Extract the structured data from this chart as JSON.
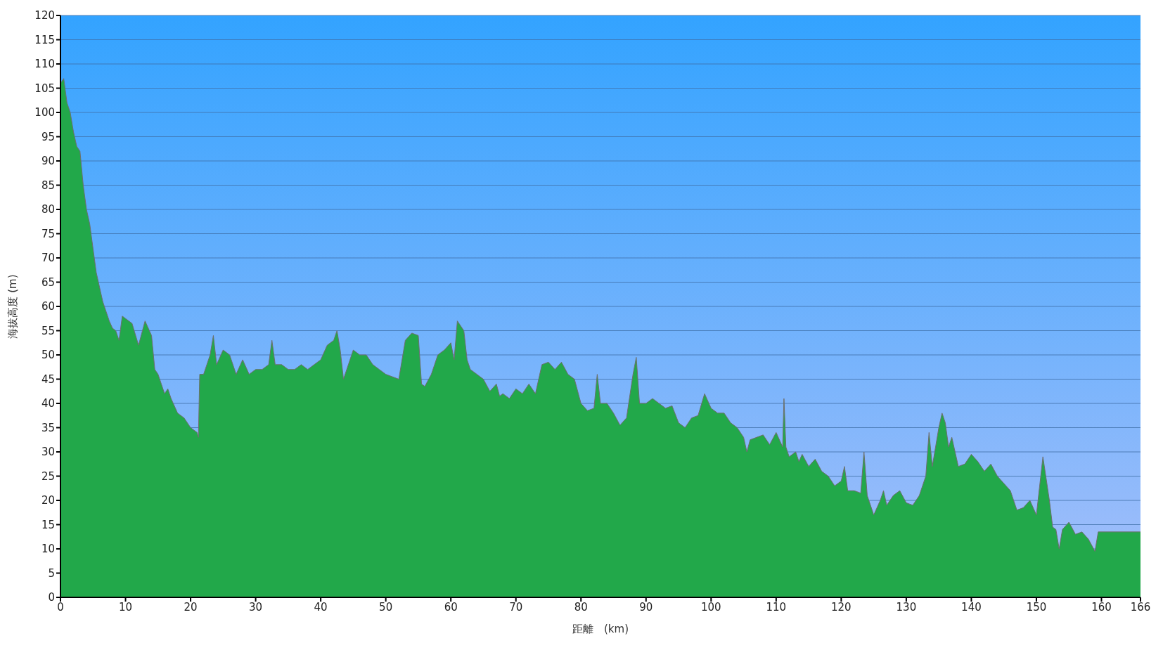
{
  "chart_data": {
    "type": "area",
    "xlabel": "距離　(km)",
    "ylabel": "海拔高度 (m)",
    "xlim": [
      0,
      166
    ],
    "ylim": [
      0,
      120
    ],
    "xticks": [
      0,
      10,
      20,
      30,
      40,
      50,
      60,
      70,
      80,
      90,
      100,
      110,
      120,
      130,
      140,
      150,
      160,
      166
    ],
    "yticks": [
      0,
      5,
      10,
      15,
      20,
      25,
      30,
      35,
      40,
      45,
      50,
      55,
      60,
      65,
      70,
      75,
      80,
      85,
      90,
      95,
      100,
      105,
      110,
      115,
      120
    ],
    "grid": "y",
    "series": [
      {
        "color": "#22a84a",
        "x": [
          0,
          0.5,
          1,
          1.5,
          2,
          2.5,
          3,
          3.5,
          4,
          4.5,
          5,
          5.5,
          6,
          6.5,
          7,
          7.5,
          8,
          8.5,
          9,
          9.5,
          10,
          11,
          12,
          13,
          14,
          14.5,
          15,
          15.5,
          16,
          16.5,
          17,
          18,
          19,
          20,
          21,
          21.2,
          21.4,
          22,
          23,
          23.5,
          24,
          25,
          26,
          27,
          28,
          29,
          30,
          31,
          32,
          32.5,
          33,
          34,
          35,
          36,
          37,
          38,
          39,
          40,
          41,
          42,
          42.5,
          43,
          43.5,
          44,
          45,
          46,
          47,
          48,
          49,
          50,
          51,
          52,
          53,
          54,
          55,
          55.5,
          56,
          57,
          58,
          59,
          60,
          60.5,
          61,
          62,
          62.5,
          63,
          64,
          65,
          66,
          67,
          67.5,
          68,
          69,
          70,
          71,
          72,
          73,
          74,
          75,
          76,
          77,
          78,
          79,
          80,
          81,
          82,
          82.5,
          83,
          84,
          85,
          86,
          87,
          88,
          88.5,
          89,
          90,
          91,
          92,
          93,
          94,
          95,
          96,
          97,
          98,
          99,
          100,
          101,
          102,
          103,
          104,
          105,
          105.5,
          106,
          107,
          108,
          109,
          110,
          111,
          111.2,
          111.5,
          112,
          113,
          113.5,
          114,
          115,
          116,
          117,
          118,
          119,
          120,
          120.5,
          121,
          122,
          123,
          123.5,
          124,
          125,
          126,
          126.5,
          127,
          128,
          129,
          130,
          131,
          132,
          133,
          133.5,
          134,
          135,
          135.5,
          136,
          136.5,
          137,
          138,
          139,
          140,
          141,
          142,
          143,
          144,
          145,
          146,
          147,
          148,
          149,
          150,
          151,
          152,
          152.5,
          153,
          153.5,
          154,
          155,
          156,
          157,
          158,
          159,
          159.5,
          166
        ],
        "values": [
          106,
          107,
          102,
          100,
          96,
          93,
          92,
          85,
          80,
          77,
          72,
          67,
          64,
          61,
          59,
          57,
          55.5,
          55,
          53,
          58,
          57.5,
          56.5,
          52,
          57,
          54,
          47,
          46,
          44,
          42,
          43,
          41,
          38,
          37,
          35,
          34,
          33,
          46,
          46,
          50,
          54,
          48,
          51,
          50,
          46,
          49,
          46,
          47,
          47,
          48,
          53,
          48,
          48,
          47,
          47,
          48,
          47,
          48,
          49,
          52,
          53,
          55,
          51,
          45,
          47,
          51,
          50,
          50,
          48,
          47,
          46,
          45.5,
          45,
          53,
          54.5,
          54,
          44,
          43.5,
          46,
          50,
          51,
          52.5,
          49,
          57,
          55,
          49,
          47,
          46,
          45,
          42.5,
          44,
          41.5,
          42,
          41,
          43,
          42,
          44,
          42,
          48,
          48.5,
          47,
          48.5,
          46,
          45,
          40,
          38.5,
          39,
          46,
          40,
          40,
          38,
          35.5,
          37,
          46,
          49.5,
          40,
          40,
          41,
          40,
          39,
          39.5,
          36,
          35,
          37,
          37.5,
          42,
          39,
          38,
          38,
          36,
          35,
          33,
          30,
          32.5,
          33,
          33.5,
          31.5,
          34,
          31,
          41,
          31,
          29,
          30,
          28,
          29.5,
          27,
          28.5,
          26,
          25,
          23,
          24,
          27,
          22,
          22,
          21.5,
          30,
          21,
          17,
          20,
          22,
          19,
          21,
          22,
          19.5,
          19,
          21,
          25,
          34,
          27,
          35,
          38,
          36,
          31,
          33,
          27,
          27.5,
          29.5,
          28,
          26,
          27.5,
          25,
          23.5,
          22,
          18,
          18.5,
          20,
          17,
          29,
          20,
          14.5,
          14,
          10,
          14,
          15.5,
          13,
          13.5,
          12,
          9.5,
          13.5,
          13.5
        ]
      }
    ]
  }
}
